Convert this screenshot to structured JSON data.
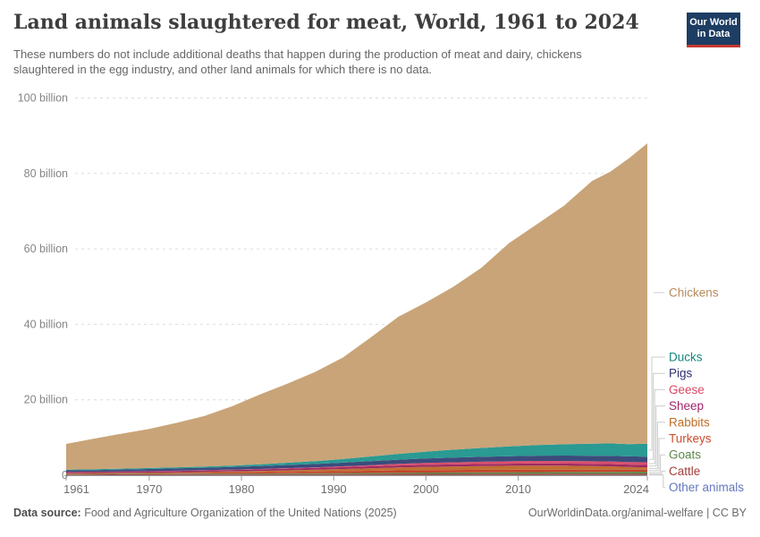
{
  "header": {
    "title": "Land animals slaughtered for meat, World, 1961 to 2024",
    "subtitle": "These numbers do not include additional deaths that happen during the production of meat and dairy, chickens slaughtered in the egg industry, and other land animals for which there is no data.",
    "logo": {
      "line1": "Our World",
      "line2": "in Data"
    }
  },
  "footer": {
    "source_label": "Data source:",
    "source_text": " Food and Agriculture Organization of the United Nations (2025)",
    "link": "OurWorldinData.org/animal-welfare",
    "separator": " | ",
    "license": "CC BY"
  },
  "colors": {
    "logo_bg": "#1d3d63",
    "logo_red": "#c4392f",
    "grid": "#dcdcdc",
    "axis": "#999999",
    "tick_text": "#858585",
    "leader_line": "#cccccc"
  },
  "chart_data": {
    "type": "area",
    "stacked": true,
    "title": "Land animals slaughtered for meat, World, 1961 to 2024",
    "xlabel": "",
    "ylabel": "",
    "unit": "billion animals",
    "xlim": [
      1961,
      2024
    ],
    "ylim": [
      0,
      100
    ],
    "grid": "horizontal-dashed",
    "legend_position": "right",
    "x": [
      1961,
      1964,
      1967,
      1970,
      1973,
      1976,
      1979,
      1982,
      1985,
      1988,
      1991,
      1994,
      1997,
      2000,
      2003,
      2006,
      2009,
      2012,
      2015,
      2018,
      2020,
      2022,
      2024
    ],
    "x_ticks": [
      1961,
      1970,
      1980,
      1990,
      2000,
      2010,
      2024
    ],
    "y_ticks": [
      {
        "value": 0,
        "label": "0"
      },
      {
        "value": 20,
        "label": "20 billion"
      },
      {
        "value": 40,
        "label": "40 billion"
      },
      {
        "value": 60,
        "label": "60 billion"
      },
      {
        "value": 80,
        "label": "80 billion"
      },
      {
        "value": 100,
        "label": "100 billion"
      }
    ],
    "series": [
      {
        "name": "Other animals",
        "color": "#8a93ae",
        "label_color": "#6377bf",
        "values": [
          0.03,
          0.03,
          0.04,
          0.04,
          0.04,
          0.05,
          0.05,
          0.05,
          0.05,
          0.06,
          0.06,
          0.06,
          0.07,
          0.07,
          0.07,
          0.08,
          0.08,
          0.08,
          0.09,
          0.09,
          0.1,
          0.1,
          0.1
        ]
      },
      {
        "name": "Cattle",
        "color": "#943735",
        "label_color": "#a03e3c",
        "values": [
          0.17,
          0.18,
          0.19,
          0.2,
          0.21,
          0.22,
          0.23,
          0.24,
          0.25,
          0.25,
          0.26,
          0.27,
          0.28,
          0.29,
          0.29,
          0.3,
          0.3,
          0.31,
          0.31,
          0.32,
          0.32,
          0.33,
          0.34
        ]
      },
      {
        "name": "Goats",
        "color": "#5f8a4c",
        "label_color": "#5d884b",
        "values": [
          0.12,
          0.13,
          0.14,
          0.15,
          0.16,
          0.17,
          0.18,
          0.19,
          0.21,
          0.23,
          0.26,
          0.29,
          0.32,
          0.35,
          0.38,
          0.4,
          0.42,
          0.44,
          0.46,
          0.47,
          0.48,
          0.49,
          0.5
        ]
      },
      {
        "name": "Turkeys",
        "color": "#c2452a",
        "label_color": "#ce4c2d",
        "values": [
          0.13,
          0.14,
          0.16,
          0.17,
          0.2,
          0.24,
          0.28,
          0.33,
          0.4,
          0.45,
          0.51,
          0.57,
          0.63,
          0.67,
          0.66,
          0.66,
          0.65,
          0.64,
          0.62,
          0.6,
          0.58,
          0.56,
          0.55
        ]
      },
      {
        "name": "Rabbits",
        "color": "#c06f33",
        "label_color": "#be6e27",
        "values": [
          0.1,
          0.11,
          0.13,
          0.15,
          0.18,
          0.22,
          0.27,
          0.33,
          0.4,
          0.48,
          0.57,
          0.67,
          0.77,
          0.85,
          0.93,
          1.0,
          1.07,
          1.1,
          1.05,
          0.95,
          0.88,
          0.72,
          0.6
        ]
      },
      {
        "name": "Sheep",
        "color": "#9e2a63",
        "label_color": "#a2246b",
        "values": [
          0.33,
          0.33,
          0.34,
          0.35,
          0.37,
          0.38,
          0.4,
          0.42,
          0.44,
          0.47,
          0.5,
          0.51,
          0.52,
          0.53,
          0.54,
          0.54,
          0.55,
          0.56,
          0.57,
          0.59,
          0.6,
          0.62,
          0.65
        ]
      },
      {
        "name": "Geese",
        "color": "#d94f6c",
        "label_color": "#db4865",
        "values": [
          0.04,
          0.04,
          0.04,
          0.05,
          0.06,
          0.07,
          0.08,
          0.1,
          0.12,
          0.15,
          0.22,
          0.32,
          0.42,
          0.5,
          0.55,
          0.6,
          0.63,
          0.66,
          0.68,
          0.69,
          0.7,
          0.7,
          0.7
        ]
      },
      {
        "name": "Pigs",
        "color": "#3b4c7c",
        "label_color": "#2d2f6f",
        "values": [
          0.38,
          0.42,
          0.48,
          0.55,
          0.6,
          0.64,
          0.7,
          0.78,
          0.85,
          0.9,
          0.97,
          1.04,
          1.12,
          1.2,
          1.26,
          1.31,
          1.35,
          1.4,
          1.44,
          1.47,
          1.49,
          1.48,
          1.5
        ]
      },
      {
        "name": "Ducks",
        "color": "#2a9a92",
        "label_color": "#15867d",
        "values": [
          0.19,
          0.21,
          0.23,
          0.25,
          0.28,
          0.32,
          0.37,
          0.45,
          0.6,
          0.75,
          0.95,
          1.25,
          1.55,
          1.8,
          2.1,
          2.35,
          2.6,
          2.8,
          3.0,
          3.2,
          3.3,
          3.25,
          3.4
        ]
      },
      {
        "name": "Chickens",
        "color": "#c9a478",
        "label_color": "#b68b5c",
        "values": [
          6.81,
          8.11,
          9.25,
          10.39,
          11.8,
          13.39,
          15.74,
          18.51,
          20.98,
          23.66,
          26.9,
          31.52,
          36.32,
          39.54,
          43.22,
          47.76,
          53.85,
          58.51,
          63.28,
          69.62,
          72.05,
          75.75,
          79.66
        ]
      }
    ]
  }
}
